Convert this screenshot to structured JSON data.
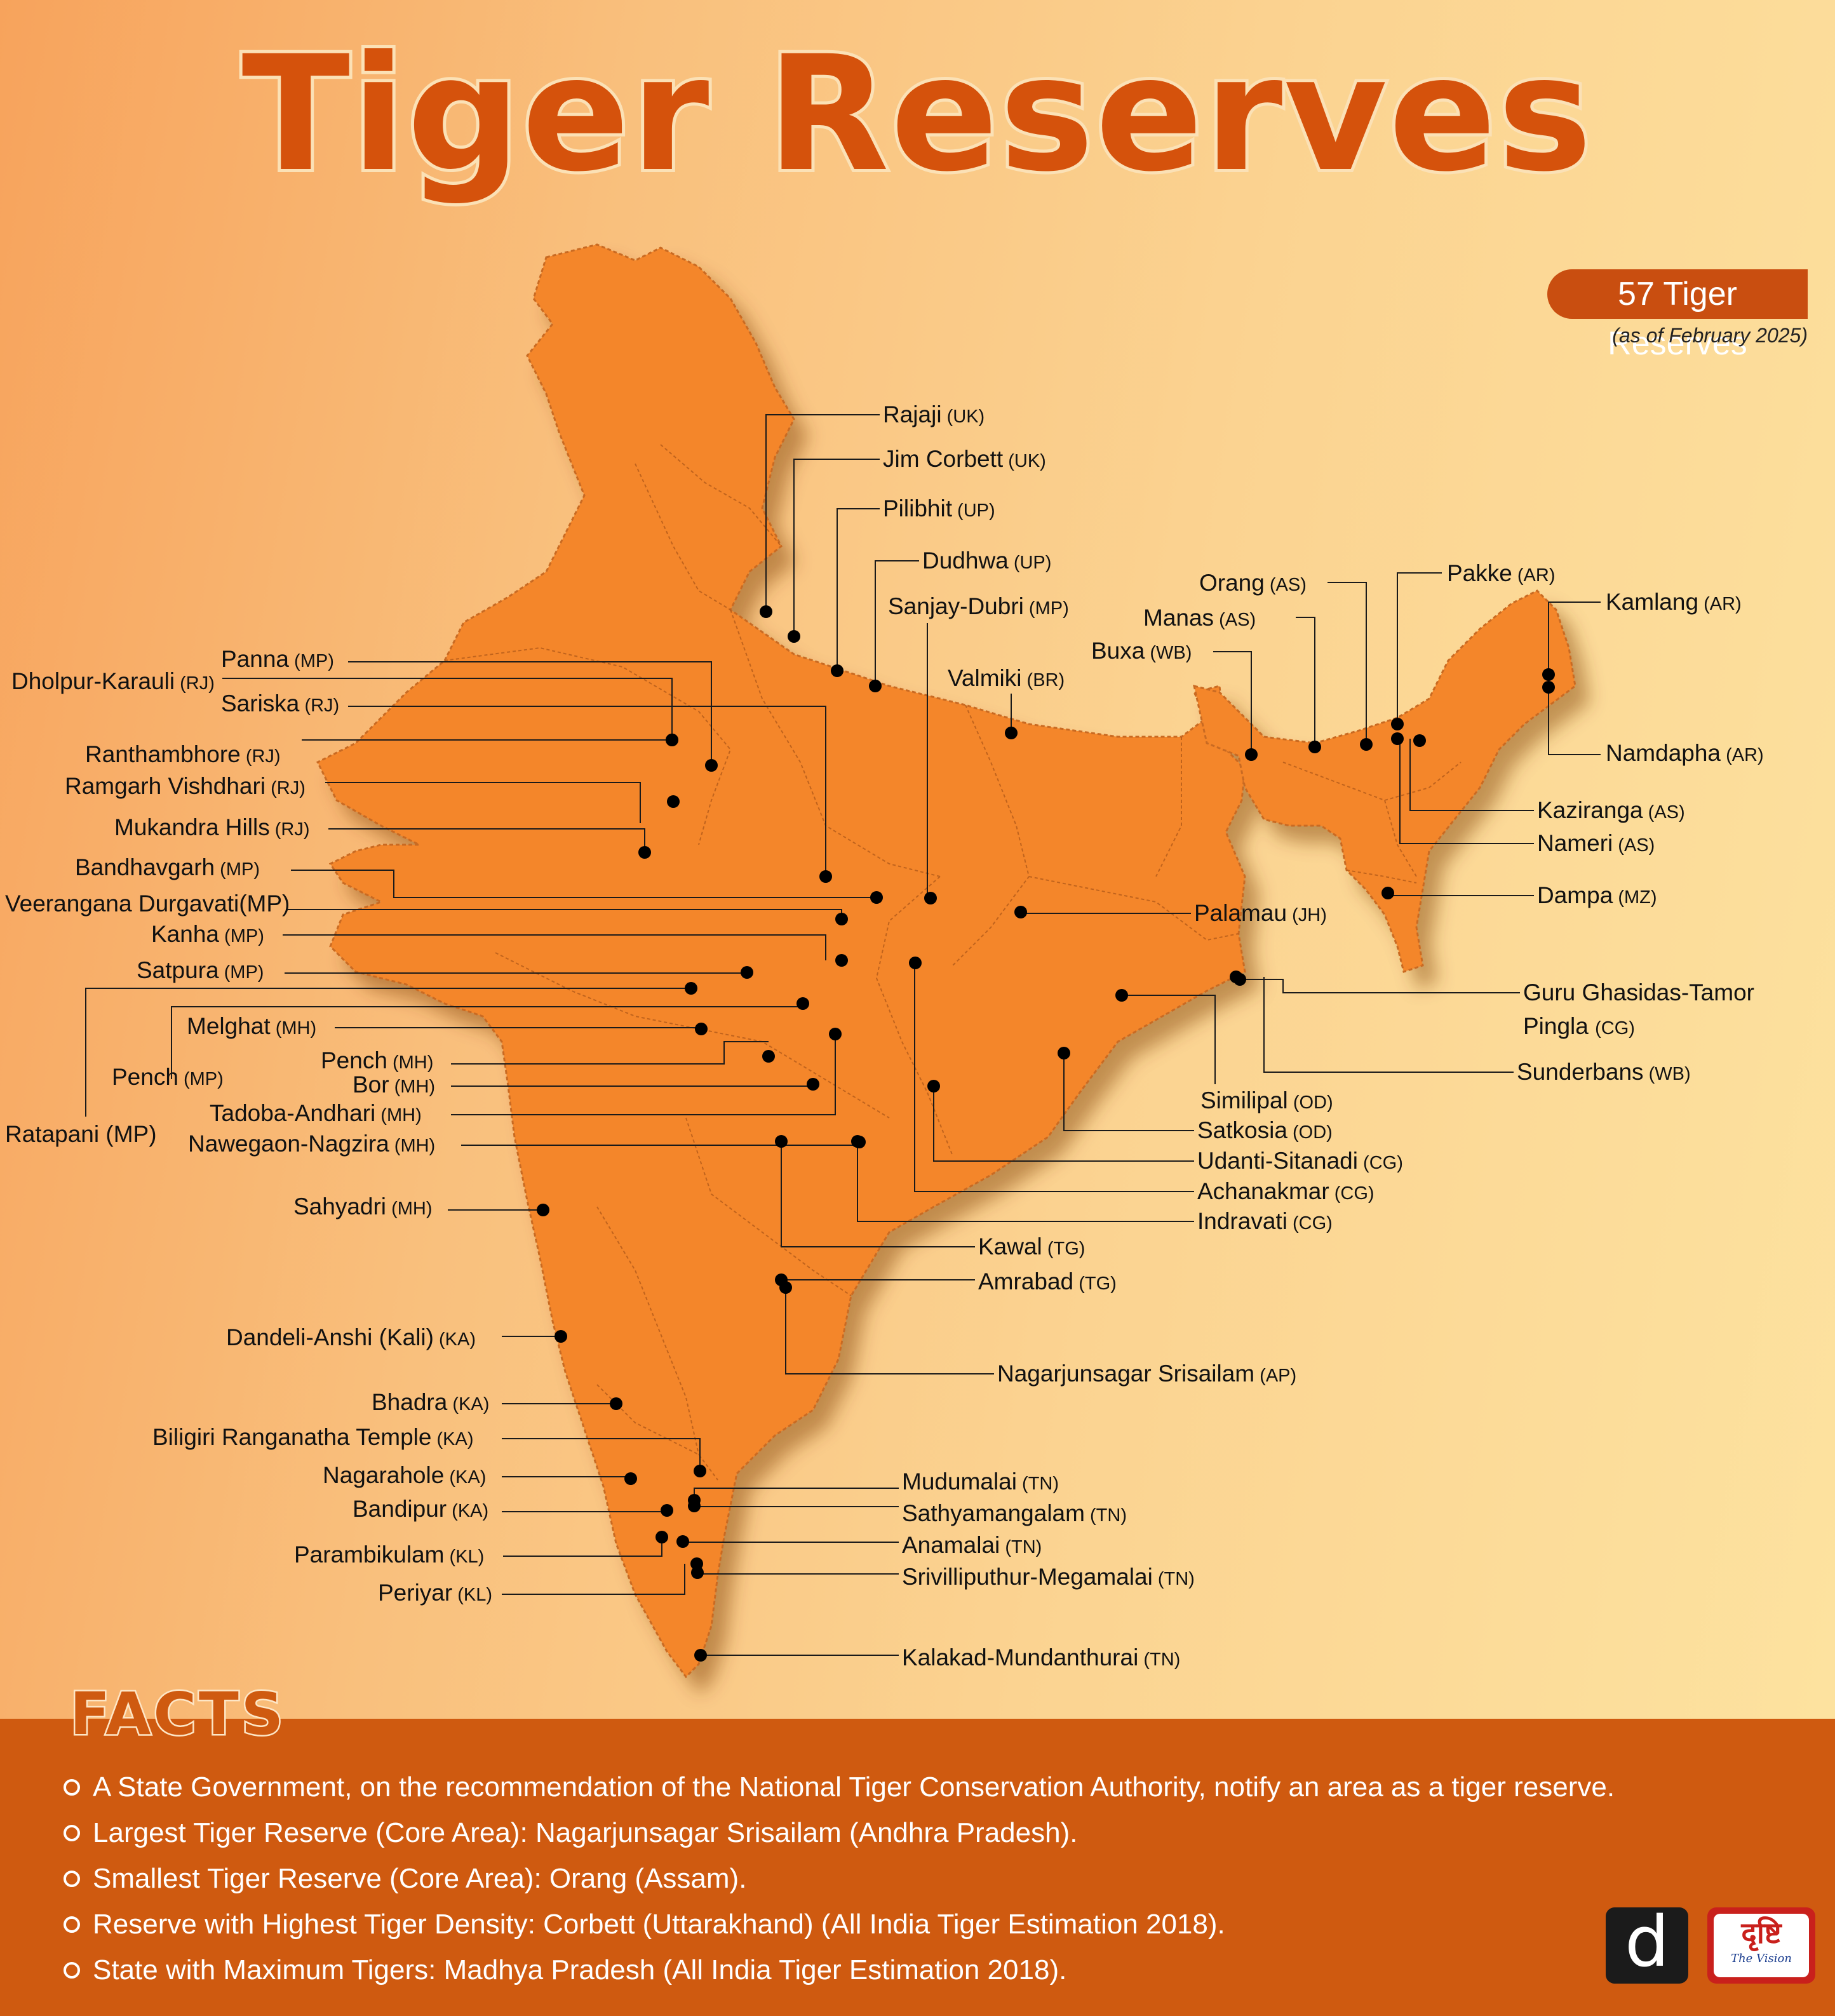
{
  "title": "Tiger Reserves",
  "badge": {
    "count_text": "57 Tiger Reserves",
    "subtitle": "(as of February 2025)"
  },
  "reserves": [
    {
      "name": "Rajaji",
      "state": "(UK)"
    },
    {
      "name": "Jim Corbett",
      "state": "(UK)"
    },
    {
      "name": "Pilibhit",
      "state": "(UP)"
    },
    {
      "name": "Dudhwa",
      "state": "(UP)"
    },
    {
      "name": "Sanjay-Dubri",
      "state": "(MP)"
    },
    {
      "name": "Valmiki",
      "state": "(BR)"
    },
    {
      "name": "Panna",
      "state": "(MP)"
    },
    {
      "name": "Dholpur-Karauli",
      "state": "(RJ)"
    },
    {
      "name": "Sariska",
      "state": "(RJ)"
    },
    {
      "name": "Ranthambhore",
      "state": "(RJ)"
    },
    {
      "name": "Ramgarh Vishdhari",
      "state": "(RJ)"
    },
    {
      "name": "Mukandra Hills",
      "state": "(RJ)"
    },
    {
      "name": "Bandhavgarh",
      "state": "(MP)"
    },
    {
      "name": "Veerangana Durgavati(MP)",
      "state": ""
    },
    {
      "name": "Kanha",
      "state": "(MP)"
    },
    {
      "name": "Satpura",
      "state": "(MP)"
    },
    {
      "name": "Melghat",
      "state": "(MH)"
    },
    {
      "name": "Pench",
      "state": "(MP)"
    },
    {
      "name": "Ratapani (MP)",
      "state": ""
    },
    {
      "name": "Pench",
      "state": "(MH)"
    },
    {
      "name": "Bor",
      "state": "(MH)"
    },
    {
      "name": "Tadoba-Andhari",
      "state": "(MH)"
    },
    {
      "name": "Nawegaon-Nagzira",
      "state": "(MH)"
    },
    {
      "name": "Sahyadri",
      "state": "(MH)"
    },
    {
      "name": "Dandeli-Anshi (Kali)",
      "state": "(KA)"
    },
    {
      "name": "Bhadra",
      "state": "(KA)"
    },
    {
      "name": "Biligiri Ranganatha Temple",
      "state": "(KA)"
    },
    {
      "name": "Nagarahole",
      "state": "(KA)"
    },
    {
      "name": "Bandipur",
      "state": "(KA)"
    },
    {
      "name": "Parambikulam",
      "state": "(KL)"
    },
    {
      "name": "Periyar",
      "state": "(KL)"
    },
    {
      "name": "Orang",
      "state": "(AS)"
    },
    {
      "name": "Manas",
      "state": "(AS)"
    },
    {
      "name": "Buxa",
      "state": "(WB)"
    },
    {
      "name": "Pakke",
      "state": "(AR)"
    },
    {
      "name": "Kamlang",
      "state": "(AR)"
    },
    {
      "name": "Namdapha",
      "state": "(AR)"
    },
    {
      "name": "Kaziranga",
      "state": "(AS)"
    },
    {
      "name": "Nameri",
      "state": "(AS)"
    },
    {
      "name": "Dampa",
      "state": "(MZ)"
    },
    {
      "name": "Palamau",
      "state": "(JH)"
    },
    {
      "name": "Guru Ghasidas-Tamor",
      "state": ""
    },
    {
      "name": "Pingla ",
      "state": "(CG)"
    },
    {
      "name": "Sunderbans",
      "state": "(WB)"
    },
    {
      "name": "Similipal",
      "state": "(OD)"
    },
    {
      "name": "Satkosia",
      "state": "(OD)"
    },
    {
      "name": "Udanti-Sitanadi",
      "state": "(CG)"
    },
    {
      "name": "Achanakmar",
      "state": "(CG)"
    },
    {
      "name": "Indravati",
      "state": "(CG)"
    },
    {
      "name": "Kawal",
      "state": "(TG)"
    },
    {
      "name": "Amrabad",
      "state": "(TG)"
    },
    {
      "name": "Nagarjunsagar Srisailam",
      "state": "(AP)"
    },
    {
      "name": "Mudumalai",
      "state": "(TN)"
    },
    {
      "name": "Sathyamangalam",
      "state": "(TN)"
    },
    {
      "name": "Anamalai",
      "state": "(TN)"
    },
    {
      "name": "Srivilliputhur-Megamalai",
      "state": "(TN)"
    },
    {
      "name": "Kalakad-Mundanthurai",
      "state": "(TN)"
    }
  ],
  "facts": {
    "heading": "FACTS",
    "items": [
      "A State Government, on the recommendation of the National Tiger Conservation Authority, notify an area as a tiger reserve.",
      "Largest Tiger Reserve (Core Area): Nagarjunsagar Srisailam (Andhra Pradesh).",
      "Smallest Tiger Reserve (Core Area): Orang (Assam).",
      "Reserve with Highest Tiger Density: Corbett (Uttarakhand) (All India Tiger Estimation 2018).",
      "State with Maximum Tigers: Madhya Pradesh (All India Tiger Estimation 2018)."
    ]
  },
  "logos": {
    "d_mark": "d",
    "vision_main": "दृष्टि",
    "vision_sub": "The Vision"
  },
  "colors": {
    "map_fill": "#f4862a",
    "accent": "#cf5a10",
    "dot": "#000000"
  }
}
